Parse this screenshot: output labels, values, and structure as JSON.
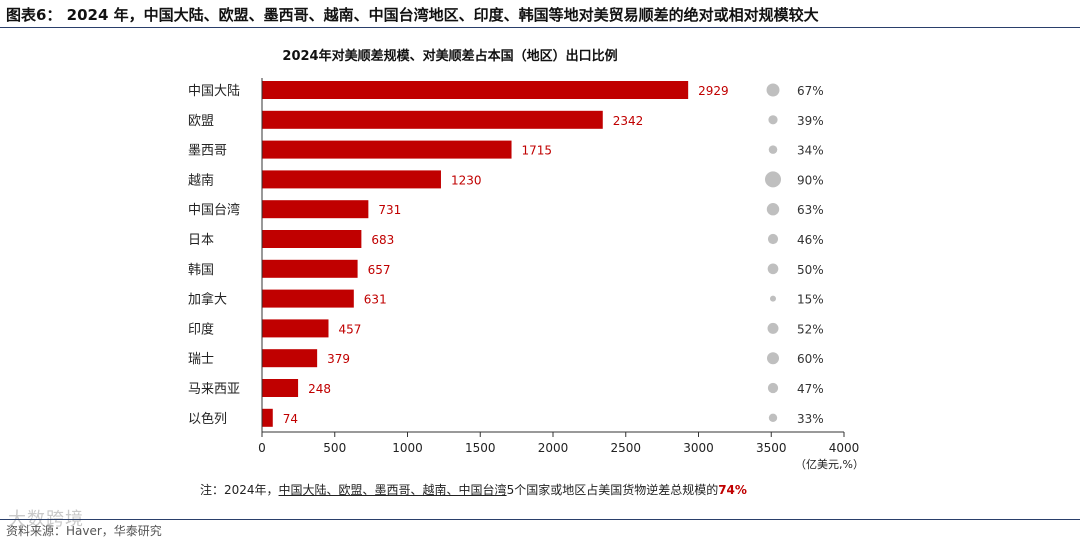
{
  "figure_title": "图表6： 2024 年，中国大陆、欧盟、墨西哥、越南、中国台湾地区、印度、韩国等地对美贸易顺差的绝对或相对规模较大",
  "note": {
    "prefix": "注：2024年，",
    "highlight": "中国大陆、欧盟、墨西哥、越南、中国台湾",
    "middle": "5个国家或地区占美国货物逆差总规模的",
    "percent": "74%"
  },
  "source": "资料来源：Haver，华泰研究",
  "watermark": "大数跨境",
  "chart_data": {
    "type": "bar",
    "orientation": "horizontal",
    "title": "2024年对美顺差规模、对美顺差占本国（地区）出口比例",
    "unit_label": "（亿美元,%）",
    "categories": [
      "中国大陆",
      "欧盟",
      "墨西哥",
      "越南",
      "中国台湾",
      "日本",
      "韩国",
      "加拿大",
      "印度",
      "瑞士",
      "马来西亚",
      "以色列"
    ],
    "values": [
      2929,
      2342,
      1715,
      1230,
      731,
      683,
      657,
      631,
      457,
      379,
      248,
      74
    ],
    "value_labels": [
      "2929",
      "2342",
      "1715",
      "1230",
      "731",
      "683",
      "657",
      "631",
      "457",
      "379",
      "248",
      "74"
    ],
    "share_of_exports_pct": [
      67,
      39,
      34,
      90,
      63,
      46,
      50,
      15,
      52,
      60,
      47,
      33
    ],
    "share_labels": [
      "67%",
      "39%",
      "34%",
      "90%",
      "63%",
      "46%",
      "50%",
      "15%",
      "52%",
      "60%",
      "47%",
      "33%"
    ],
    "xlim": [
      0,
      4000
    ],
    "xticks": [
      0,
      500,
      1000,
      1500,
      2000,
      2500,
      3000,
      3500,
      4000
    ],
    "bar_color": "#c00000",
    "bubble_color": "#bfbfbf",
    "grid": false
  }
}
